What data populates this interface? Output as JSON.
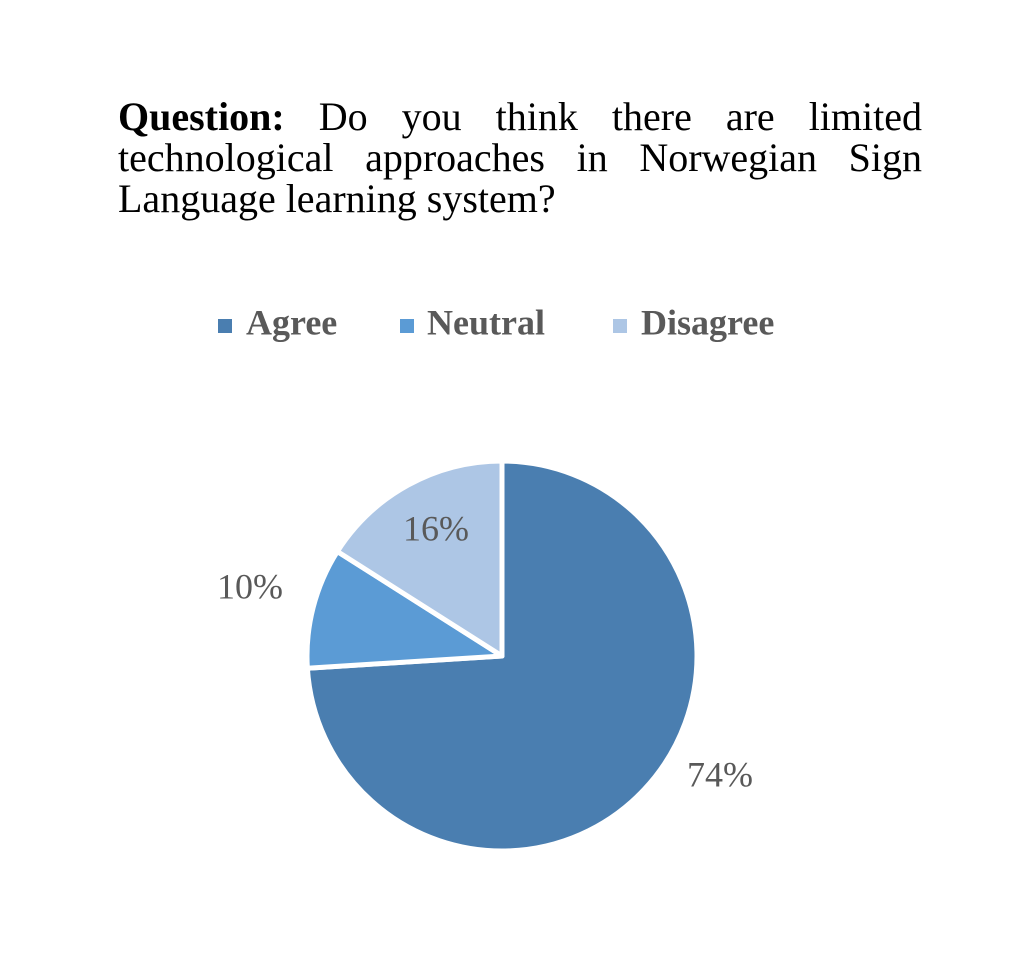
{
  "chart_data": {
    "type": "pie",
    "title_label": "Question:",
    "title": "Do you think there are limited technological approaches in Norwegian Sign Language learning system?",
    "categories": [
      "Agree",
      "Neutral",
      "Disagree"
    ],
    "values": [
      74,
      10,
      16
    ],
    "value_labels": [
      "74%",
      "10%",
      "16%"
    ],
    "colors": [
      "#4a7eb0",
      "#5b9bd5",
      "#adc6e5"
    ],
    "legend": "top"
  }
}
